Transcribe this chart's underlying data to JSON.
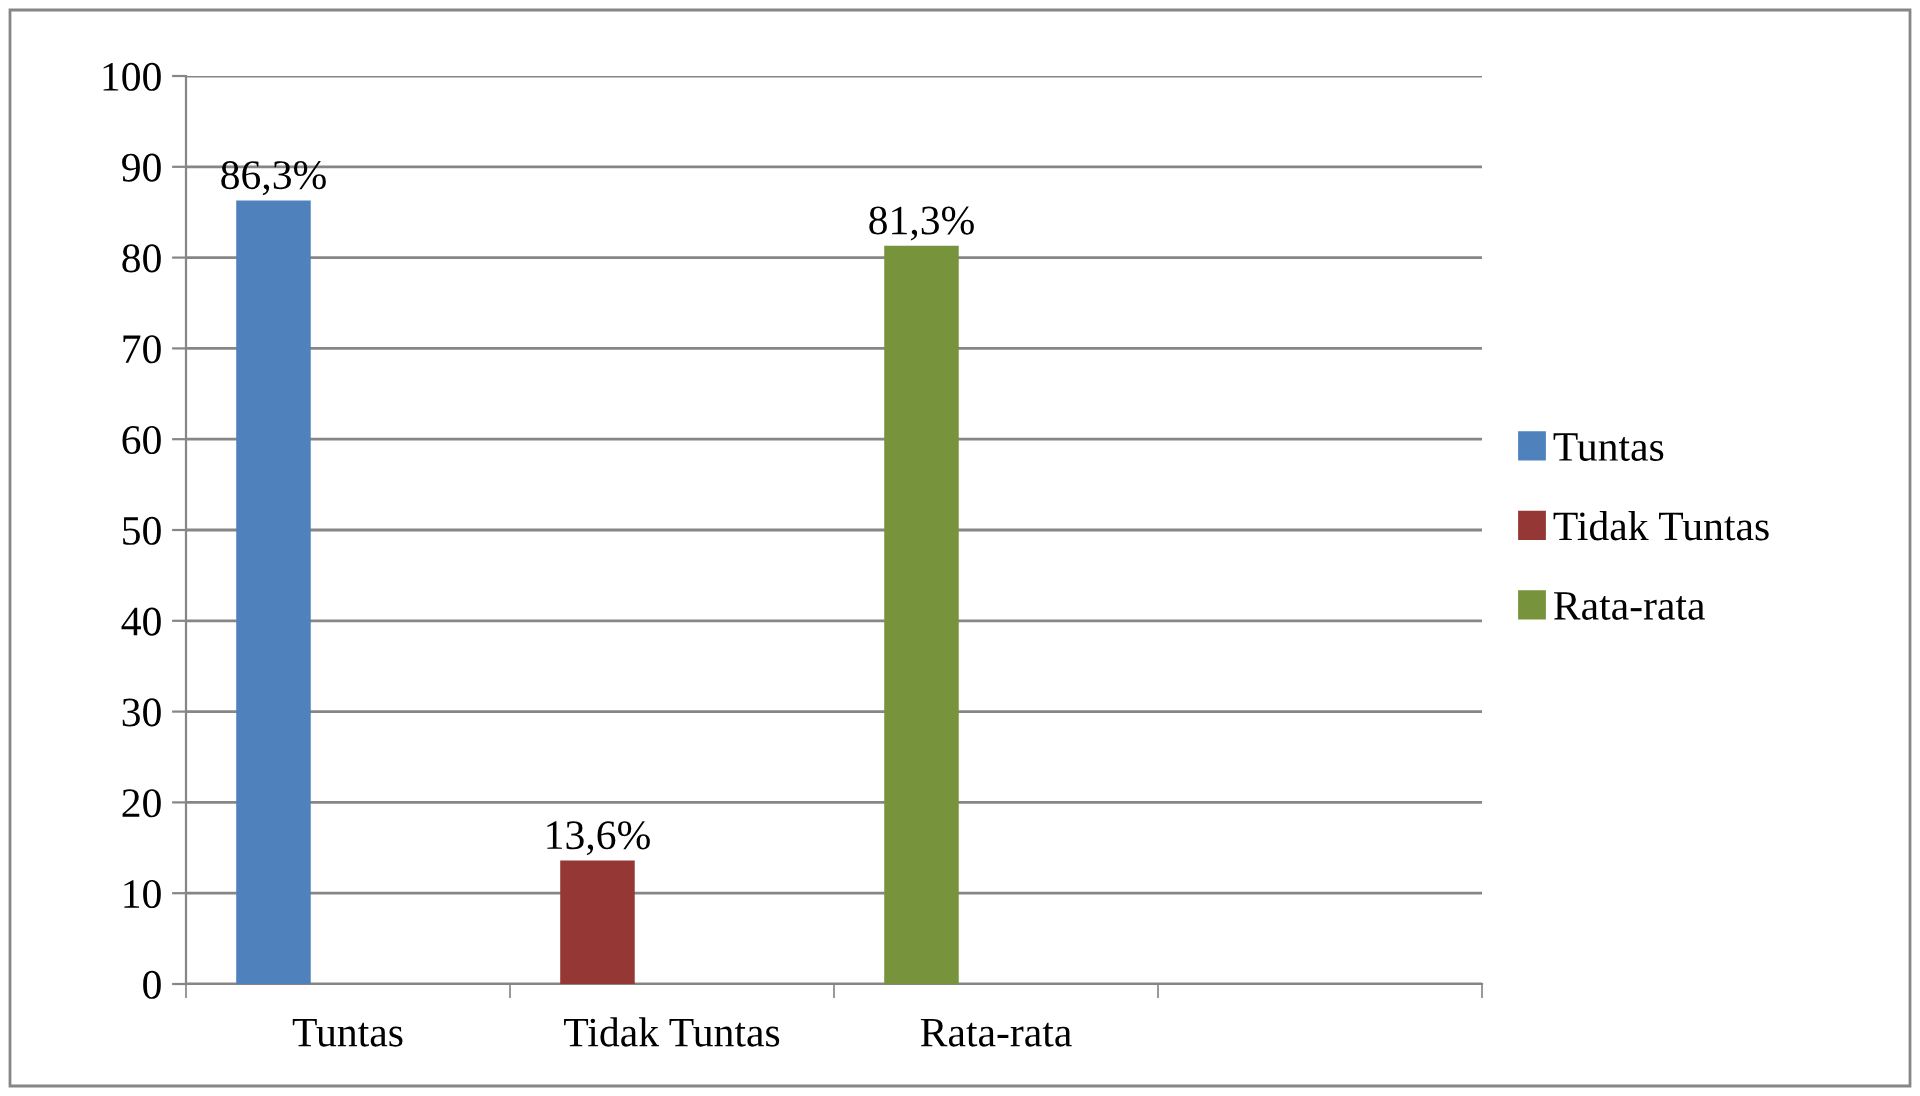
{
  "chart_data": {
    "type": "bar",
    "categories": [
      "Tuntas",
      "Tidak Tuntas",
      "Rata-rata",
      null
    ],
    "series": [
      {
        "name": "Tuntas",
        "color": "#4f81bd",
        "values": [
          86.3,
          null,
          null,
          null
        ],
        "value_labels": [
          "86,3%",
          null,
          null,
          null
        ]
      },
      {
        "name": "Tidak Tuntas",
        "color": "#953735",
        "values": [
          null,
          13.6,
          null,
          null
        ],
        "value_labels": [
          null,
          "13,6%",
          null,
          null
        ]
      },
      {
        "name": "Rata-rata",
        "color": "#77933c",
        "values": [
          null,
          null,
          81.3,
          null
        ],
        "value_labels": [
          null,
          null,
          "81,3%",
          null
        ]
      }
    ],
    "ylim": [
      0,
      100
    ],
    "yticks": [
      0,
      10,
      20,
      30,
      40,
      50,
      60,
      70,
      80,
      90,
      100
    ],
    "grid": "y",
    "legend": "right"
  }
}
